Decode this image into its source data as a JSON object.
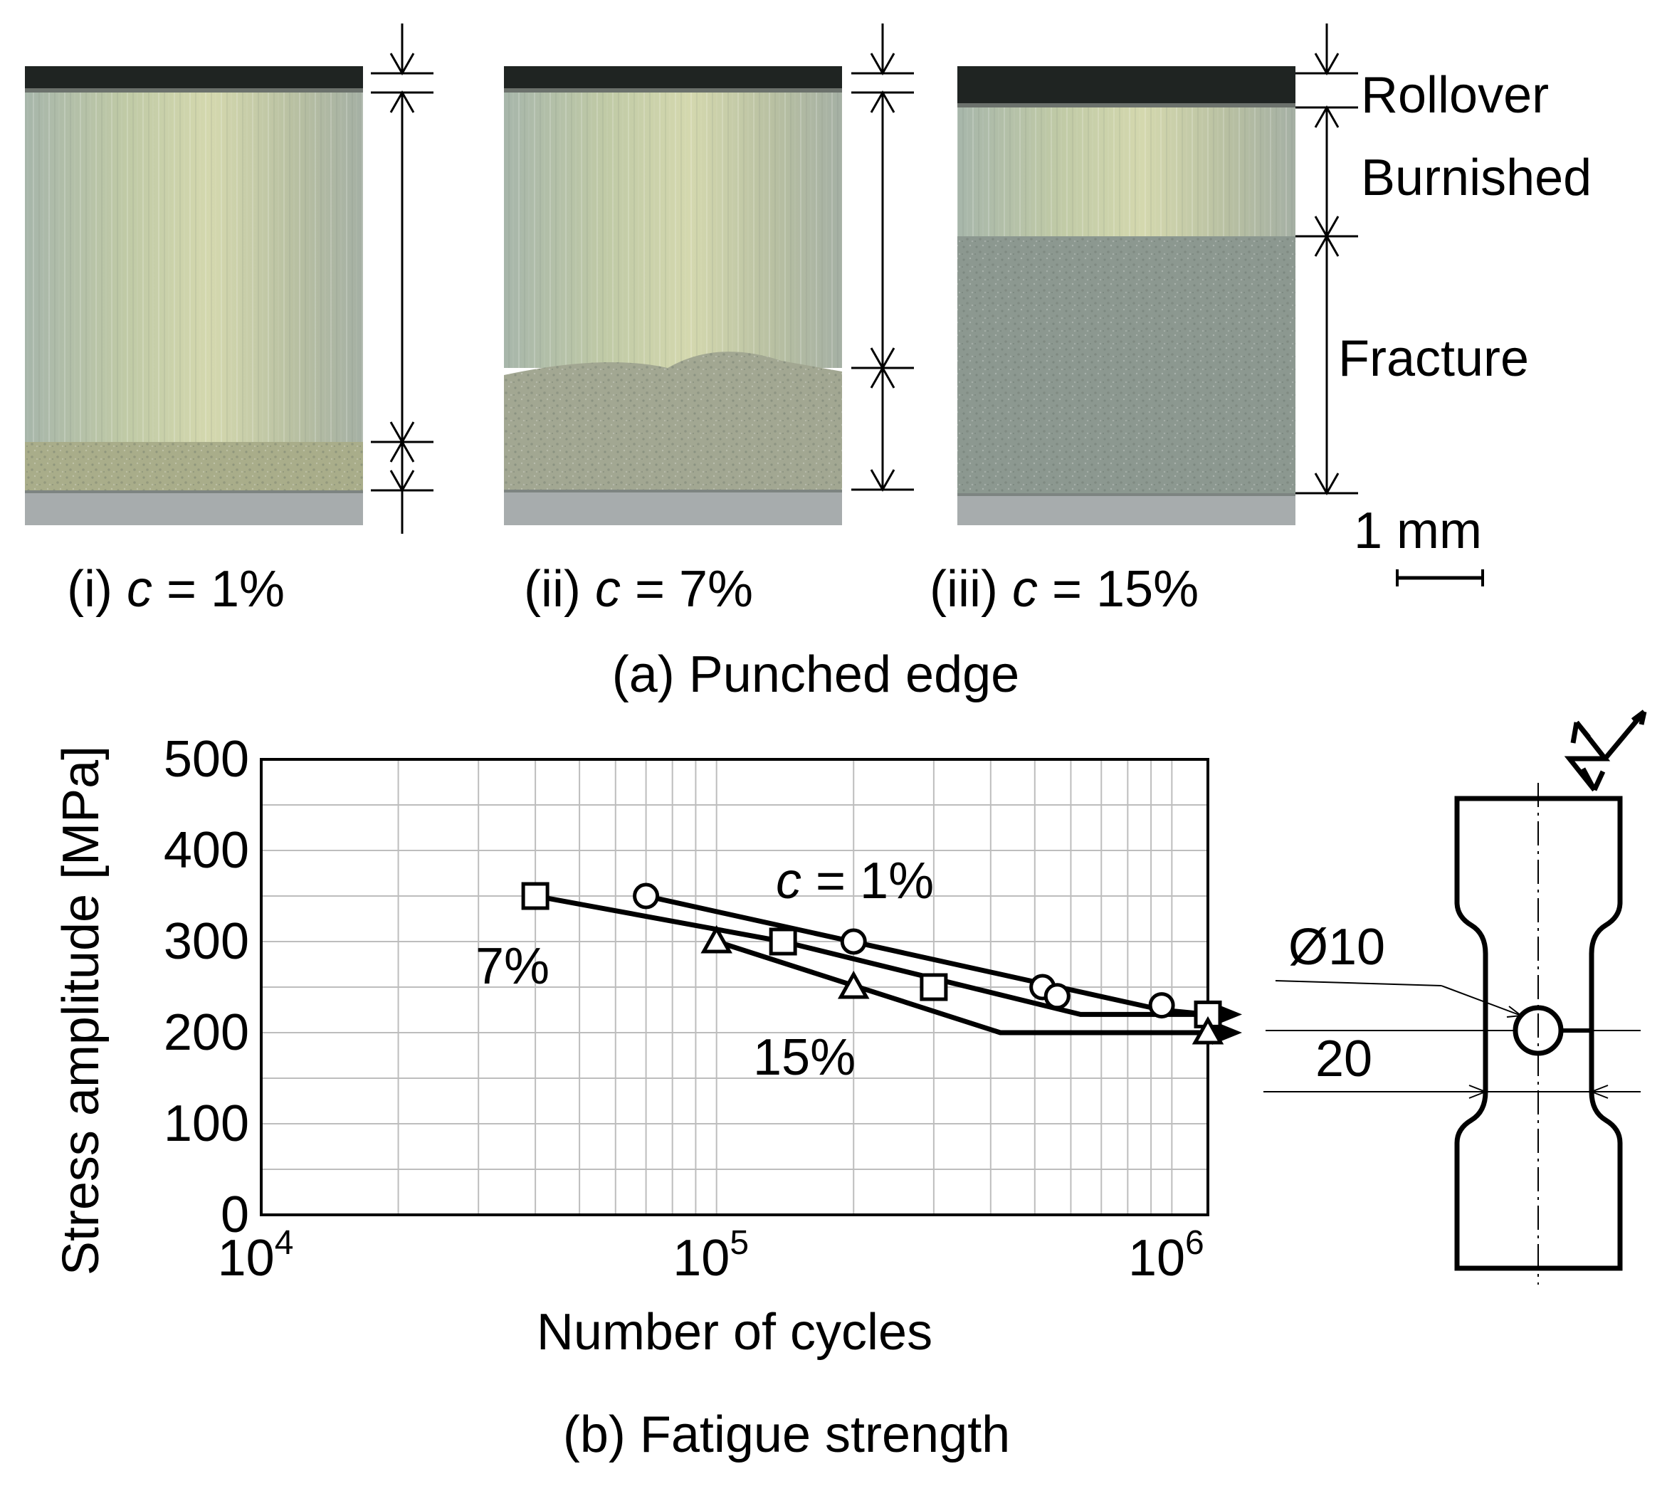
{
  "panel_a": {
    "caption": "(a) Punched edge",
    "zones": {
      "rollover": "Rollover",
      "burnished": "Burnished",
      "fracture": "Fracture"
    },
    "scale_bar": "1 mm",
    "photos": [
      {
        "prefix": "(i) ",
        "var": "c",
        "value": " = 1%",
        "rollover_frac": 0.058,
        "burnished_frac": 0.762,
        "fracture_frac": 0.105,
        "fracture_color": "#a9ad8a"
      },
      {
        "prefix": "(ii) ",
        "var": "c",
        "value": " = 7%",
        "rollover_frac": 0.058,
        "burnished_frac": 0.6,
        "fracture_frac": 0.265,
        "fracture_color": "#a2a792"
      },
      {
        "prefix": "(iii) ",
        "var": "c",
        "value": " = 15%",
        "rollover_frac": 0.09,
        "burnished_frac": 0.28,
        "fracture_frac": 0.56,
        "fracture_color": "#8c9890"
      }
    ]
  },
  "panel_b": {
    "caption": "(b) Fatigue strength",
    "specimen_labels": {
      "hole_diameter": "Ø10",
      "width": "20"
    }
  },
  "chart_data": {
    "type": "scatter",
    "xlabel": "Number of cycles",
    "ylabel": "Stress amplitude [MPa]",
    "x_scale": "log",
    "xlim": [
      10000,
      1200000
    ],
    "ylim": [
      0,
      500
    ],
    "y_ticks": [
      "0",
      "100",
      "200",
      "300",
      "400",
      "500"
    ],
    "x_ticks": [
      {
        "value": 10000,
        "base": "10",
        "exp": "4"
      },
      {
        "value": 100000,
        "base": "10",
        "exp": "5"
      },
      {
        "value": 1000000,
        "base": "10",
        "exp": "6"
      }
    ],
    "grid": true,
    "series": [
      {
        "name": "c = 1%",
        "marker": "circle",
        "points": [
          [
            70000,
            350
          ],
          [
            200000,
            300
          ],
          [
            520000,
            250
          ],
          [
            560000,
            240
          ],
          [
            950000,
            230
          ]
        ],
        "runout": {
          "x": 1200000,
          "y": 220
        },
        "fit": [
          [
            70000,
            350
          ],
          [
            950000,
            225
          ],
          [
            1200000,
            220
          ]
        ]
      },
      {
        "name": "7%",
        "marker": "square",
        "points": [
          [
            40000,
            350
          ],
          [
            140000,
            300
          ],
          [
            300000,
            250
          ]
        ],
        "runout": {
          "x": 1200000,
          "y": 220
        },
        "fit": [
          [
            40000,
            350
          ],
          [
            140000,
            300
          ],
          [
            630000,
            220
          ],
          [
            1200000,
            220
          ]
        ]
      },
      {
        "name": "15%",
        "marker": "triangle",
        "points": [
          [
            100000,
            300
          ],
          [
            200000,
            250
          ]
        ],
        "runout": {
          "x": 1200000,
          "y": 200
        },
        "fit": [
          [
            100000,
            300
          ],
          [
            420000,
            200
          ],
          [
            1200000,
            200
          ]
        ]
      }
    ]
  }
}
